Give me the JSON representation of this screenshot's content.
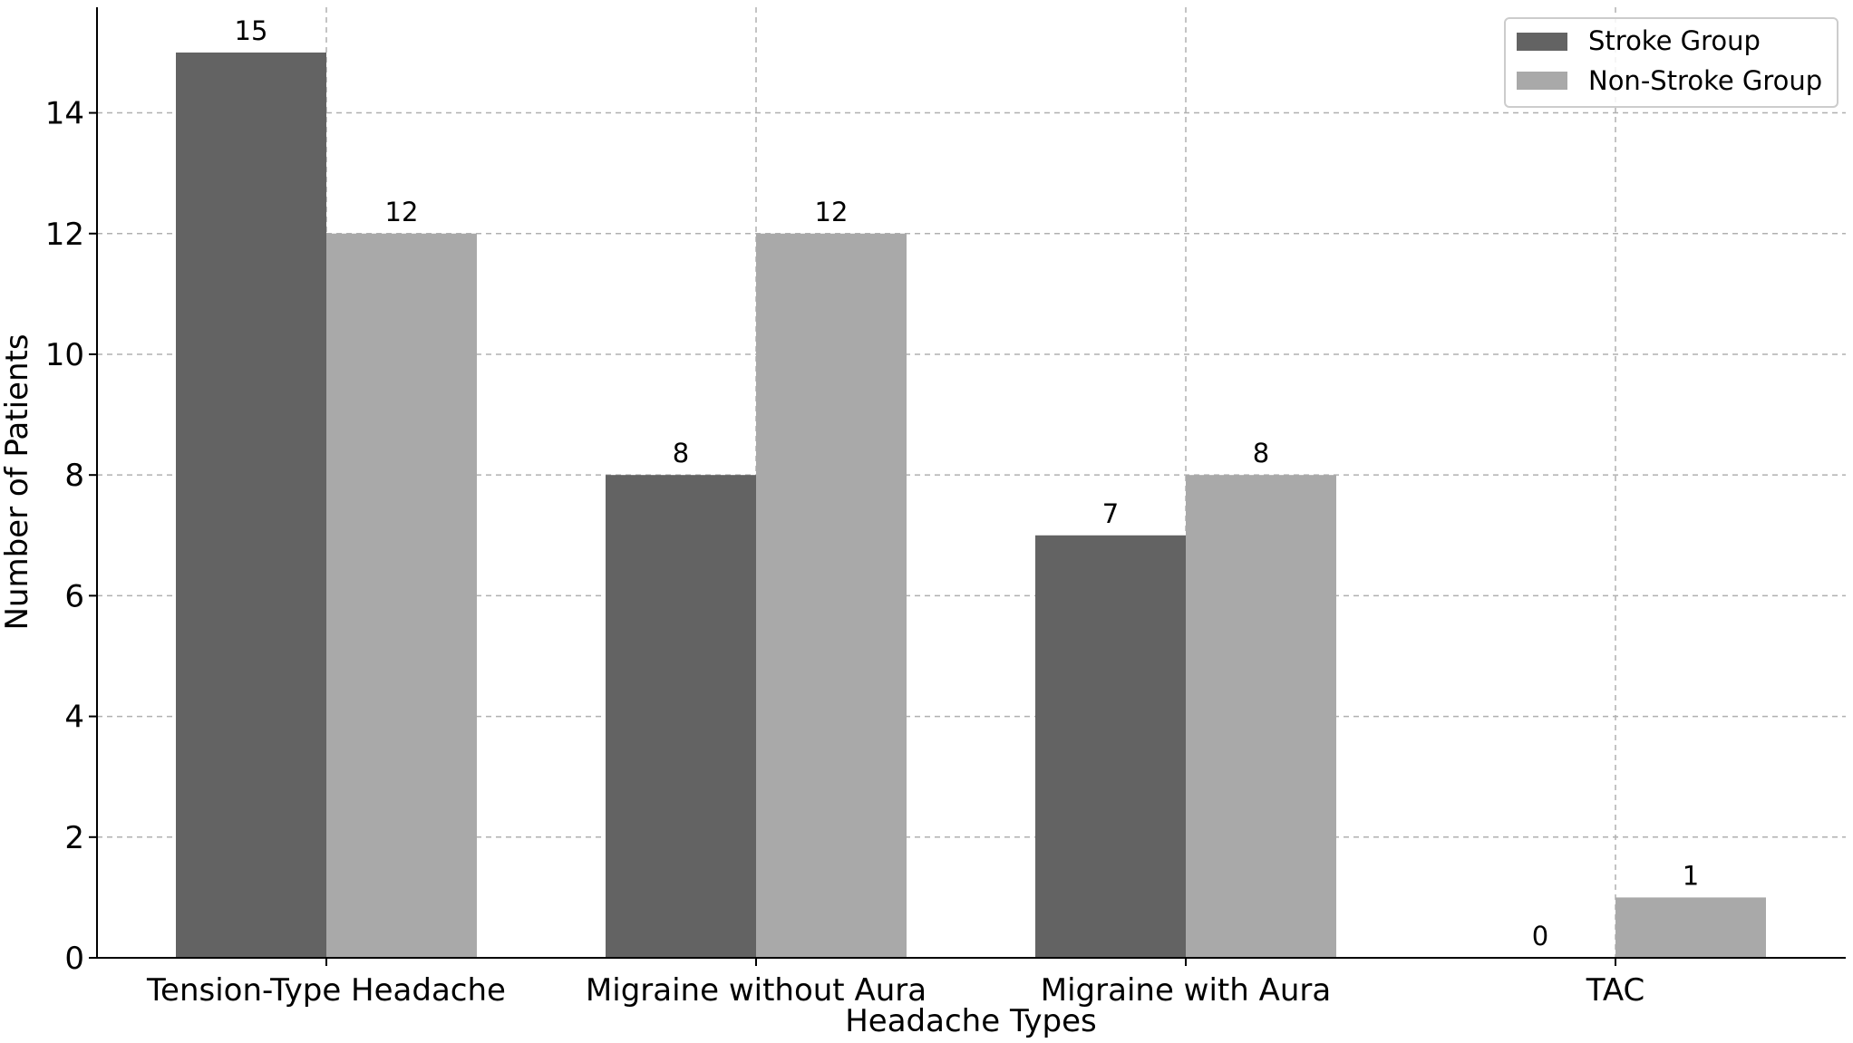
{
  "chart_data": {
    "type": "bar",
    "title": "",
    "xlabel": "Headache Types",
    "ylabel": "Number of Patients",
    "categories": [
      "Tension-Type Headache",
      "Migraine without Aura",
      "Migraine with Aura",
      "TAC"
    ],
    "series": [
      {
        "name": "Stroke Group",
        "values": [
          15,
          8,
          7,
          0
        ],
        "color": "#636363"
      },
      {
        "name": "Non-Stroke Group",
        "values": [
          12,
          12,
          8,
          1
        ],
        "color": "#a9a9a9"
      }
    ],
    "data_labels": [
      [
        "15",
        "8",
        "7",
        "0"
      ],
      [
        "12",
        "12",
        "8",
        "1"
      ]
    ],
    "ylim": [
      0,
      15.75
    ],
    "yticks": [
      0,
      2,
      4,
      6,
      8,
      10,
      12,
      14
    ],
    "ytick_labels": [
      "0",
      "2",
      "4",
      "6",
      "8",
      "10",
      "12",
      "14"
    ],
    "grid": true,
    "legend_position": "top-right"
  }
}
